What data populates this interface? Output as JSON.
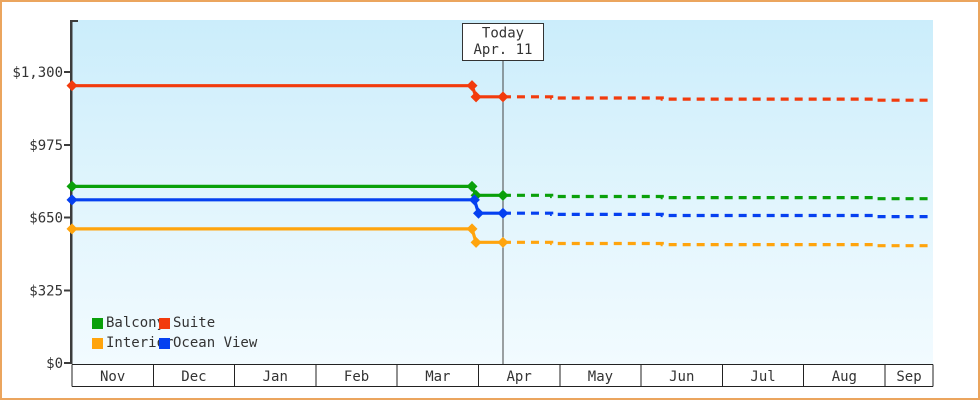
{
  "frame": {
    "border_color": "#eba55e"
  },
  "chart_data": {
    "type": "line",
    "title": "",
    "xlabel": "",
    "ylabel": "",
    "x_axis": {
      "months": [
        "Nov",
        "Dec",
        "Jan",
        "Feb",
        "Mar",
        "Apr",
        "May",
        "Jun",
        "Jul",
        "Aug",
        "Sep"
      ]
    },
    "y_axis": {
      "ylim": [
        0,
        1300
      ],
      "ticks": [
        {
          "value": 0,
          "label": "$0"
        },
        {
          "value": 325,
          "label": "$325"
        },
        {
          "value": 650,
          "label": "$650"
        },
        {
          "value": 975,
          "label": "$975"
        },
        {
          "value": 1300,
          "label": "$1,300"
        }
      ]
    },
    "today": {
      "line1": "Today",
      "line2": "Apr. 11",
      "month_x": 5.301
    },
    "grid": false,
    "legend_position": "bottom-left-inside",
    "series": [
      {
        "name": "Suite",
        "color": "#f23b0d",
        "price_start": 1239,
        "price_current": 1189,
        "history": [
          [
            0,
            1239
          ],
          [
            4.92,
            1239
          ],
          [
            4.97,
            1189
          ],
          [
            5.301,
            1189
          ]
        ],
        "markers": [
          [
            0,
            1239
          ],
          [
            4.92,
            1239
          ],
          [
            4.97,
            1189
          ],
          [
            5.301,
            1189
          ]
        ],
        "forecast": [
          [
            5.301,
            1189
          ],
          [
            5.9,
            1189
          ],
          [
            5.9,
            1184
          ],
          [
            7.26,
            1184
          ],
          [
            7.26,
            1179
          ],
          [
            9.9,
            1179
          ],
          [
            9.9,
            1174
          ],
          [
            10.58,
            1174
          ]
        ]
      },
      {
        "name": "Balcony",
        "color": "#0aa00a",
        "price_start": 789,
        "price_current": 749,
        "history": [
          [
            0,
            789
          ],
          [
            4.92,
            789
          ],
          [
            4.97,
            749
          ],
          [
            5.301,
            749
          ]
        ],
        "markers": [
          [
            0,
            789
          ],
          [
            4.92,
            789
          ],
          [
            4.97,
            749
          ],
          [
            5.301,
            749
          ]
        ],
        "forecast": [
          [
            5.301,
            749
          ],
          [
            5.9,
            749
          ],
          [
            5.9,
            744
          ],
          [
            7.26,
            744
          ],
          [
            7.26,
            739
          ],
          [
            9.9,
            739
          ],
          [
            9.9,
            734
          ],
          [
            10.58,
            734
          ]
        ]
      },
      {
        "name": "Ocean View",
        "color": "#0540f0",
        "price_start": 729,
        "price_current": 669,
        "history": [
          [
            0,
            729
          ],
          [
            4.95,
            729
          ],
          [
            5.0,
            669
          ],
          [
            5.301,
            669
          ]
        ],
        "markers": [
          [
            0,
            729
          ],
          [
            4.95,
            729
          ],
          [
            5.0,
            669
          ],
          [
            5.301,
            669
          ]
        ],
        "forecast": [
          [
            5.301,
            669
          ],
          [
            5.9,
            669
          ],
          [
            5.9,
            664
          ],
          [
            7.26,
            664
          ],
          [
            7.26,
            659
          ],
          [
            9.9,
            659
          ],
          [
            9.9,
            654
          ],
          [
            10.58,
            654
          ]
        ]
      },
      {
        "name": "Interior",
        "color": "#ffa40d",
        "price_start": 599,
        "price_current": 539,
        "history": [
          [
            0,
            599
          ],
          [
            4.92,
            599
          ],
          [
            4.97,
            539
          ],
          [
            5.301,
            539
          ]
        ],
        "markers": [
          [
            0,
            599
          ],
          [
            4.92,
            599
          ],
          [
            4.97,
            539
          ],
          [
            5.301,
            539
          ]
        ],
        "forecast": [
          [
            5.301,
            539
          ],
          [
            5.9,
            539
          ],
          [
            5.9,
            534
          ],
          [
            7.26,
            534
          ],
          [
            7.26,
            529
          ],
          [
            9.9,
            529
          ],
          [
            9.9,
            524
          ],
          [
            10.58,
            524
          ]
        ]
      }
    ],
    "legend": [
      {
        "label": "Balcony",
        "color": "#0aa00a"
      },
      {
        "label": "Suite",
        "color": "#f23b0d"
      },
      {
        "label": "Interior",
        "color": "#ffa40d"
      },
      {
        "label": "Ocean View",
        "color": "#0540f0"
      }
    ]
  }
}
